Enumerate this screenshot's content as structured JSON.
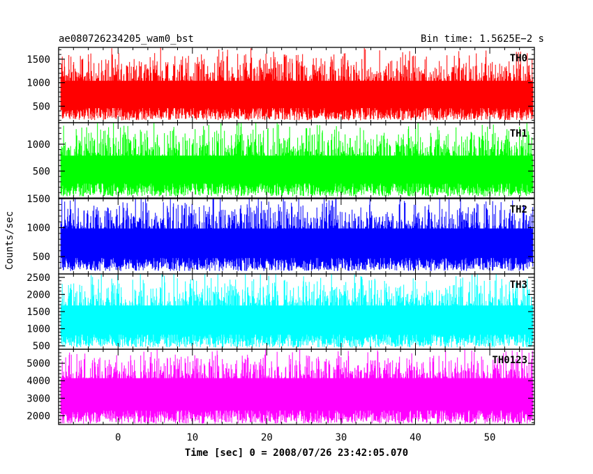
{
  "header": {
    "title": "ae080726234205_wam0_bst",
    "bin_time": "Bin time: 1.5625E−2 s"
  },
  "axes": {
    "xlabel": "Time [sec] 0 = 2008/07/26 23:42:05.070",
    "ylabel": "Counts/sec"
  },
  "chart_data": {
    "type": "line",
    "xlim": [
      -8,
      56
    ],
    "x_ticks": [
      0,
      10,
      20,
      30,
      40,
      50
    ],
    "data_x_range": [
      -7.7,
      55.8
    ],
    "panels": [
      {
        "name": "TH0",
        "color": "#ff0000",
        "ylim": [
          150,
          1750
        ],
        "yticks": [
          500,
          1000,
          1500
        ],
        "mean": 780,
        "low": 200,
        "high": 1650
      },
      {
        "name": "TH1",
        "color": "#00ff00",
        "ylim": [
          0,
          1400
        ],
        "yticks": [
          500,
          1000
        ],
        "mean": 550,
        "low": 30,
        "high": 1350
      },
      {
        "name": "TH2",
        "color": "#0000ff",
        "ylim": [
          200,
          1500
        ],
        "yticks": [
          500,
          1000,
          1500
        ],
        "mean": 760,
        "low": 250,
        "high": 1500
      },
      {
        "name": "TH3",
        "color": "#00ffff",
        "ylim": [
          400,
          2600
        ],
        "yticks": [
          500,
          1000,
          1500,
          2000,
          2500
        ],
        "mean": 1300,
        "low": 450,
        "high": 2550
      },
      {
        "name": "TH0123",
        "color": "#ff00ff",
        "ylim": [
          1500,
          5800
        ],
        "yticks": [
          2000,
          3000,
          4000,
          5000
        ],
        "mean": 3400,
        "low": 1550,
        "high": 5700
      }
    ]
  }
}
